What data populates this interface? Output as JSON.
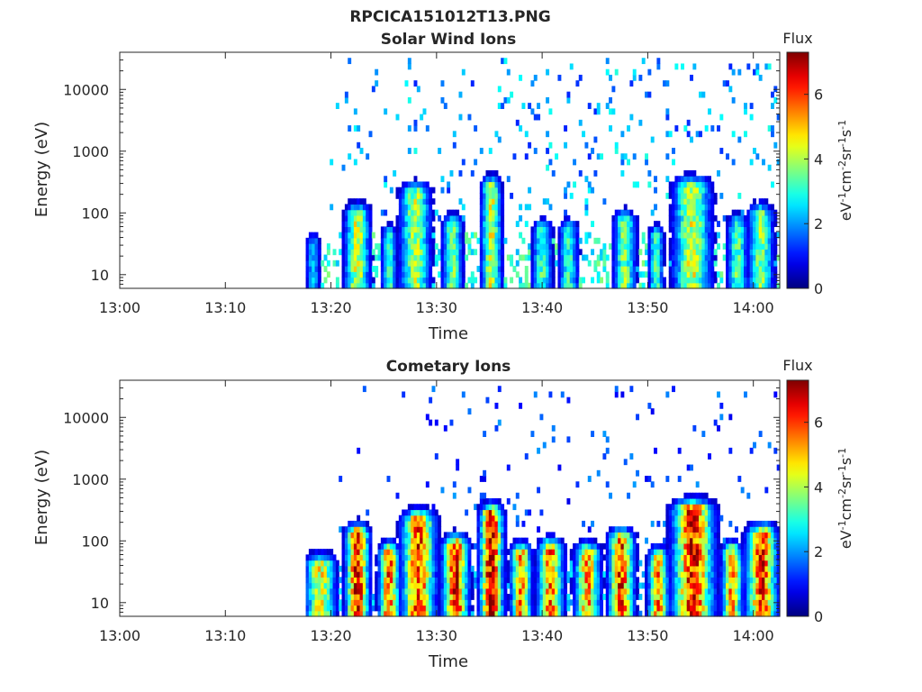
{
  "figure": {
    "title": "RPCICA151012T13.PNG"
  },
  "colormap": {
    "name": "jet",
    "stops": [
      "#00007f",
      "#0000ff",
      "#007fff",
      "#00ffff",
      "#7fff7f",
      "#ffff00",
      "#ff7f00",
      "#ff0000",
      "#7f0000"
    ]
  },
  "chart_data": [
    {
      "type": "heatmap",
      "title": "Solar Wind Ions",
      "xlabel": "Time",
      "ylabel": "Energy (eV)",
      "x_ticks": [
        "13:00",
        "13:10",
        "13:20",
        "13:30",
        "13:40",
        "13:50",
        "14:00"
      ],
      "xlim_minutes": [
        0,
        62.5
      ],
      "yscale": "log",
      "ylim": [
        6,
        40000
      ],
      "y_ticks": [
        10,
        100,
        1000,
        10000
      ],
      "y_tick_labels": [
        "10",
        "100",
        "1000",
        "10000"
      ],
      "colorbar": {
        "label": "Flux",
        "unit": "eV-1cm-2sr-1s-1",
        "range": [
          0,
          7.3
        ],
        "ticks": [
          0,
          2,
          4,
          6
        ]
      },
      "data_start_minute": 17.5,
      "bursts": [
        {
          "minute": 18.3,
          "width": 0.6,
          "peak": 2.2,
          "top_eV": 30
        },
        {
          "minute": 22.5,
          "width": 1.0,
          "peak": 4.2,
          "top_eV": 90
        },
        {
          "minute": 25.5,
          "width": 0.6,
          "peak": 3.2,
          "top_eV": 40
        },
        {
          "minute": 28.0,
          "width": 1.2,
          "peak": 4.0,
          "top_eV": 200
        },
        {
          "minute": 31.5,
          "width": 0.8,
          "peak": 3.6,
          "top_eV": 60
        },
        {
          "minute": 35.2,
          "width": 0.8,
          "peak": 4.2,
          "top_eV": 250
        },
        {
          "minute": 40.0,
          "width": 0.8,
          "peak": 3.2,
          "top_eV": 50
        },
        {
          "minute": 42.5,
          "width": 0.8,
          "peak": 3.0,
          "top_eV": 50
        },
        {
          "minute": 47.8,
          "width": 0.9,
          "peak": 3.6,
          "top_eV": 70
        },
        {
          "minute": 50.8,
          "width": 0.6,
          "peak": 3.2,
          "top_eV": 40
        },
        {
          "minute": 54.2,
          "width": 1.5,
          "peak": 4.2,
          "top_eV": 250
        },
        {
          "minute": 58.5,
          "width": 0.8,
          "peak": 3.4,
          "top_eV": 60
        },
        {
          "minute": 60.7,
          "width": 1.0,
          "peak": 3.8,
          "top_eV": 90
        }
      ],
      "background": {
        "level": 2.5,
        "density": 0.075,
        "start_minute": 20,
        "max_eV": 30000
      }
    },
    {
      "type": "heatmap",
      "title": "Cometary Ions",
      "xlabel": "Time",
      "ylabel": "Energy (eV)",
      "x_ticks": [
        "13:00",
        "13:10",
        "13:20",
        "13:30",
        "13:40",
        "13:50",
        "14:00"
      ],
      "xlim_minutes": [
        0,
        62.5
      ],
      "yscale": "log",
      "ylim": [
        6,
        40000
      ],
      "y_ticks": [
        10,
        100,
        1000,
        10000
      ],
      "y_tick_labels": [
        "10",
        "100",
        "1000",
        "10000"
      ],
      "colorbar": {
        "label": "Flux",
        "unit": "eV-1cm-2sr-1s-1",
        "range": [
          0,
          7.3
        ],
        "ticks": [
          0,
          2,
          4,
          6
        ]
      },
      "data_start_minute": 17.5,
      "bursts": [
        {
          "minute": 19.0,
          "width": 1.2,
          "peak": 4.5,
          "top_eV": 40
        },
        {
          "minute": 22.5,
          "width": 0.9,
          "peak": 6.5,
          "top_eV": 120
        },
        {
          "minute": 25.5,
          "width": 0.8,
          "peak": 5.8,
          "top_eV": 60
        },
        {
          "minute": 28.3,
          "width": 1.3,
          "peak": 6.0,
          "top_eV": 200
        },
        {
          "minute": 31.8,
          "width": 1.0,
          "peak": 6.3,
          "top_eV": 80
        },
        {
          "minute": 35.2,
          "width": 0.9,
          "peak": 6.8,
          "top_eV": 250
        },
        {
          "minute": 38.0,
          "width": 0.8,
          "peak": 5.3,
          "top_eV": 60
        },
        {
          "minute": 40.8,
          "width": 1.0,
          "peak": 5.5,
          "top_eV": 70
        },
        {
          "minute": 44.3,
          "width": 1.0,
          "peak": 5.2,
          "top_eV": 60
        },
        {
          "minute": 47.5,
          "width": 1.0,
          "peak": 6.0,
          "top_eV": 100
        },
        {
          "minute": 51.0,
          "width": 0.8,
          "peak": 5.3,
          "top_eV": 50
        },
        {
          "minute": 54.3,
          "width": 1.6,
          "peak": 6.3,
          "top_eV": 300
        },
        {
          "minute": 58.0,
          "width": 0.8,
          "peak": 5.3,
          "top_eV": 60
        },
        {
          "minute": 60.8,
          "width": 1.2,
          "peak": 6.0,
          "top_eV": 120
        }
      ],
      "background": {
        "level": 1.7,
        "density": 0.045,
        "start_minute": 20,
        "max_eV": 30000
      }
    }
  ]
}
